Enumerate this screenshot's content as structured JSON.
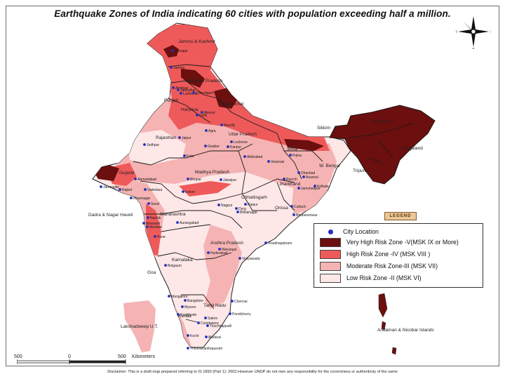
{
  "title": "Earthquake Zones of India indicating 60 cities with population exceeding half a million.",
  "legend": {
    "tag": "LEGEND",
    "items": [
      {
        "label": "City Location",
        "kind": "dot",
        "color": "#1f2fbf"
      },
      {
        "label": "Very High  Risk Zone -V(MSK IX or More)",
        "kind": "swatch",
        "color": "#6b0f0f"
      },
      {
        "label": "High Risk Zone -IV (MSK  VIII )",
        "kind": "swatch",
        "color": "#ee5a5a"
      },
      {
        "label": "Moderate Risk Zone-III  (MSK  VII)",
        "kind": "swatch",
        "color": "#f5b3b3"
      },
      {
        "label": "Low Risk Zone -II (MSK  VI)",
        "kind": "swatch",
        "color": "#fde7e7"
      }
    ]
  },
  "compass": {
    "n": "N",
    "s": "S",
    "e": "E",
    "w": "W"
  },
  "scale": {
    "left": "500",
    "mid": "0",
    "right": "500",
    "unit": "Kilometers"
  },
  "disclaimer": "Disclaimer: This is a draft map prepared referring to IS 1893 (Part 1): 2002.However UNDP do not own any responsibility for the correctness or authenticity of the same",
  "regions": {
    "jk": "Jammu & Kashmir",
    "hp": "Himachal Pradesh",
    "punjab": "Punjab",
    "haryana": "Haryana",
    "uttaranchal": "Uttaranchal",
    "rajasthan": "Rajasthan",
    "up": "Uttar Pradesh",
    "bihar": "Bihar",
    "sikkim": "Sikkim",
    "arunachal": "Arunachal",
    "nagaland": "Nagaland",
    "tripura": "Tripura",
    "wbengal": "W. Bengal",
    "gujarat": "Gujarat",
    "mp": "Madhya Pradesh",
    "jharkhand": "Jharkhand",
    "chhattisgarh": "Chhattisgarh",
    "orissa": "Orissa",
    "maharashtra": "Maharashtra",
    "dadra": "Dadra & Nagar Haveli",
    "ap": "Andhra Pradesh",
    "karnataka": "Karnataka",
    "goa": "Goa",
    "tn": "Tamil Nadu",
    "kerala": "Kerala",
    "lakshadweep": "Lakshadweep U.T.",
    "andaman": "Andaman & Nicobar Islands"
  },
  "cities": [
    "Srinagar",
    "Jammu",
    "Amritsar",
    "Jalandhar",
    "Ludhiana",
    "Chandigarh",
    "Delhi",
    "Meerut",
    "Bareilly",
    "Agra",
    "Gwalior",
    "Jodhpur",
    "Jaipur",
    "Kota",
    "Lucknow",
    "Kanpur",
    "Allahabad",
    "Varanasi",
    "Patna",
    "Dhanbad",
    "Asansol",
    "Kolkata",
    "Ranchi",
    "Jamshedpur",
    "Jamnagar",
    "Rajkot",
    "Ahmadabad",
    "Vadodara",
    "Bhavnagar",
    "Surat",
    "Bhopal",
    "Indore",
    "Jabalpur",
    "Raipur",
    "Durg",
    "Bhilainagar",
    "Cuttack",
    "Bhubaneswar",
    "Nagpur",
    "Nashik",
    "Bhiwandi",
    "Mumbai",
    "Pune",
    "Aurangabad",
    "Warangal",
    "Hyderabad",
    "Vijayawada",
    "Visakhapatnam",
    "Belgaum",
    "Mangalore",
    "Mysore",
    "Bangalore",
    "Chennai",
    "Pondicherry",
    "Salem",
    "Coimbatore",
    "Kozhikode",
    "Madurai",
    "Tiruchirappalli",
    "Kochi",
    "Thiruvananthapuram"
  ]
}
